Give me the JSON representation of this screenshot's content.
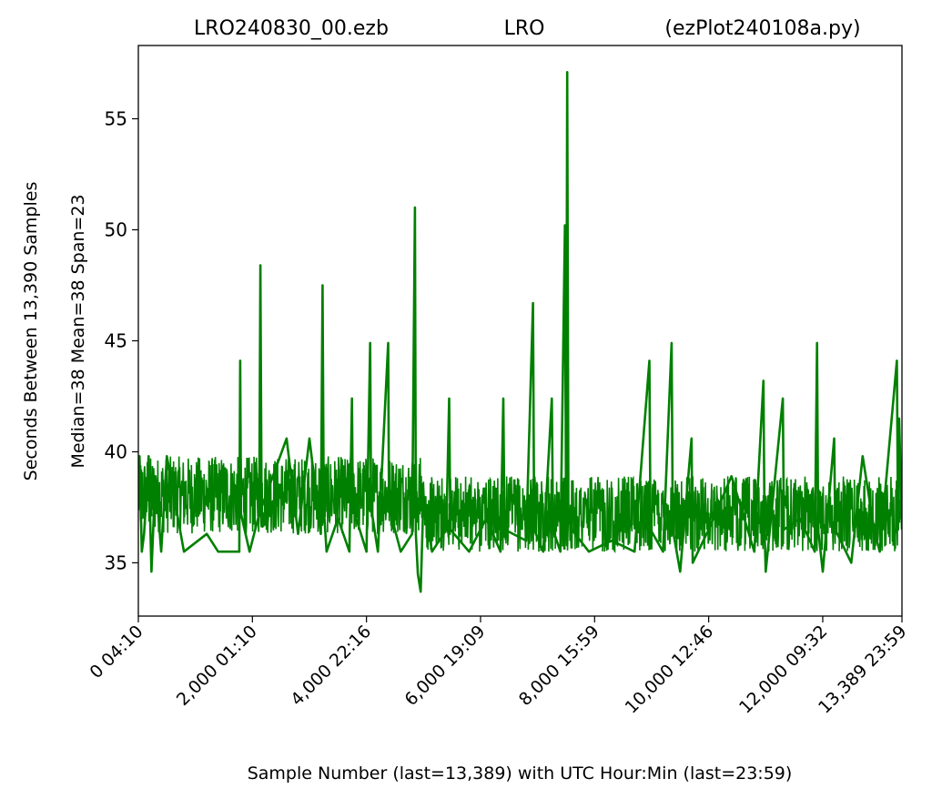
{
  "title": {
    "left": "LRO240830_00.ezb",
    "center": "LRO",
    "right": "(ezPlot240108a.py)"
  },
  "colors": {
    "series": "#008000",
    "axis": "#000000",
    "background": "#ffffff"
  },
  "chart_data": {
    "type": "line",
    "xlabel": "Sample Number (last=13,389) with UTC Hour:Min (last=23:59)",
    "ylabel_outer": "Seconds Between 13,390 Samples",
    "ylabel_inner": "Median=38  Mean=38  Span=23",
    "xlim": [
      0,
      13389
    ],
    "ylim": [
      32.6,
      58.3
    ],
    "grid": false,
    "yticks": [
      35,
      40,
      45,
      50,
      55
    ],
    "xticks": [
      {
        "value": 0,
        "label": "0  04:10"
      },
      {
        "value": 2000,
        "label": "2,000  01:10"
      },
      {
        "value": 4000,
        "label": "4,000  22:16"
      },
      {
        "value": 6000,
        "label": "6,000  19:09"
      },
      {
        "value": 8000,
        "label": "8,000  15:59"
      },
      {
        "value": 10000,
        "label": "10,000  12:46"
      },
      {
        "value": 12000,
        "label": "12,000  09:32"
      },
      {
        "value": 13389,
        "label": "13,389  23:59"
      }
    ],
    "series": [
      {
        "color": "#008000",
        "baseline_bands": [
          {
            "x_start": 0,
            "x_end": 5000,
            "low": 36.3,
            "high": 39.8
          },
          {
            "x_start": 5000,
            "x_end": 13389,
            "low": 35.5,
            "high": 38.9
          }
        ],
        "points": [
          [
            0,
            37.5
          ],
          [
            20,
            39.8
          ],
          [
            60,
            35.5
          ],
          [
            100,
            36.3
          ],
          [
            180,
            39.8
          ],
          [
            230,
            34.6
          ],
          [
            300,
            38.9
          ],
          [
            400,
            35.5
          ],
          [
            500,
            39.8
          ],
          [
            800,
            35.5
          ],
          [
            1200,
            36.3
          ],
          [
            1400,
            35.5
          ],
          [
            1770,
            35.5
          ],
          [
            1785,
            44.1
          ],
          [
            1800,
            37.2
          ],
          [
            1950,
            35.5
          ],
          [
            2120,
            37.2
          ],
          [
            2140,
            48.4
          ],
          [
            2160,
            37.5
          ],
          [
            2600,
            40.6
          ],
          [
            2800,
            36.3
          ],
          [
            3000,
            40.6
          ],
          [
            3200,
            36.3
          ],
          [
            3230,
            47.5
          ],
          [
            3250,
            37.5
          ],
          [
            3300,
            35.5
          ],
          [
            3500,
            37.0
          ],
          [
            3700,
            35.5
          ],
          [
            3745,
            42.4
          ],
          [
            3760,
            37.5
          ],
          [
            4000,
            35.5
          ],
          [
            4065,
            44.9
          ],
          [
            4080,
            37.5
          ],
          [
            4200,
            35.5
          ],
          [
            4380,
            44.9
          ],
          [
            4395,
            37.5
          ],
          [
            4600,
            35.5
          ],
          [
            4800,
            36.3
          ],
          [
            4850,
            51.0
          ],
          [
            4865,
            36.3
          ],
          [
            4900,
            34.5
          ],
          [
            4950,
            33.7
          ],
          [
            5000,
            38.0
          ],
          [
            5150,
            35.5
          ],
          [
            5400,
            36.5
          ],
          [
            5450,
            42.4
          ],
          [
            5470,
            36.5
          ],
          [
            5800,
            35.5
          ],
          [
            6100,
            37.0
          ],
          [
            6350,
            35.5
          ],
          [
            6400,
            42.4
          ],
          [
            6420,
            36.5
          ],
          [
            6800,
            36.0
          ],
          [
            6920,
            46.7
          ],
          [
            6940,
            36.5
          ],
          [
            7100,
            35.5
          ],
          [
            7250,
            42.4
          ],
          [
            7270,
            36.5
          ],
          [
            7400,
            35.5
          ],
          [
            7480,
            50.2
          ],
          [
            7500,
            36.5
          ],
          [
            7520,
            57.1
          ],
          [
            7540,
            37.5
          ],
          [
            7600,
            36.5
          ],
          [
            7900,
            35.5
          ],
          [
            8300,
            36.0
          ],
          [
            8700,
            35.5
          ],
          [
            8960,
            44.1
          ],
          [
            8980,
            36.5
          ],
          [
            9200,
            35.5
          ],
          [
            9350,
            44.9
          ],
          [
            9370,
            36.5
          ],
          [
            9500,
            34.6
          ],
          [
            9700,
            40.6
          ],
          [
            9720,
            35.0
          ],
          [
            10000,
            36.5
          ],
          [
            10400,
            38.9
          ],
          [
            10800,
            35.5
          ],
          [
            10960,
            43.2
          ],
          [
            10980,
            36.5
          ],
          [
            11000,
            34.6
          ],
          [
            11300,
            42.4
          ],
          [
            11320,
            36.5
          ],
          [
            11600,
            37.0
          ],
          [
            11860,
            35.5
          ],
          [
            11900,
            44.9
          ],
          [
            11920,
            36.5
          ],
          [
            12000,
            34.6
          ],
          [
            12200,
            40.6
          ],
          [
            12220,
            36.5
          ],
          [
            12500,
            35.0
          ],
          [
            12700,
            39.8
          ],
          [
            12900,
            36.5
          ],
          [
            13000,
            35.5
          ],
          [
            13300,
            44.1
          ],
          [
            13320,
            36.5
          ],
          [
            13340,
            41.5
          ],
          [
            13389,
            36.5
          ]
        ]
      }
    ]
  }
}
